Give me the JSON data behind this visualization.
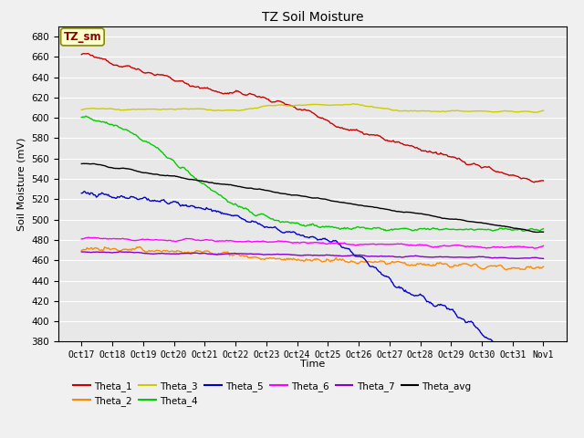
{
  "title": "TZ Soil Moisture",
  "xlabel": "Time",
  "ylabel": "Soil Moisture (mV)",
  "ylim": [
    380,
    690
  ],
  "yticks": [
    380,
    400,
    420,
    440,
    460,
    480,
    500,
    520,
    540,
    560,
    580,
    600,
    620,
    640,
    660,
    680
  ],
  "x_labels": [
    "Oct 17",
    "Oct 18",
    "Oct 19",
    "Oct 20",
    "Oct 21",
    "Oct 22",
    "Oct 23",
    "Oct 24",
    "Oct 25",
    "Oct 26",
    "Oct 27",
    "Oct 28",
    "Oct 29",
    "Oct 30",
    "Oct 31",
    "Nov 1"
  ],
  "legend_label": "TZ_sm",
  "series_colors": {
    "Theta_1": "#cc0000",
    "Theta_2": "#ff8800",
    "Theta_3": "#cccc00",
    "Theta_4": "#00cc00",
    "Theta_5": "#0000cc",
    "Theta_6": "#ff00ff",
    "Theta_7": "#8800cc",
    "Theta_avg": "#000000"
  },
  "background_color": "#e8e8e8",
  "fig_background": "#f0f0f0",
  "grid_color": "#ffffff",
  "num_points": 500,
  "linewidth": 1.0
}
